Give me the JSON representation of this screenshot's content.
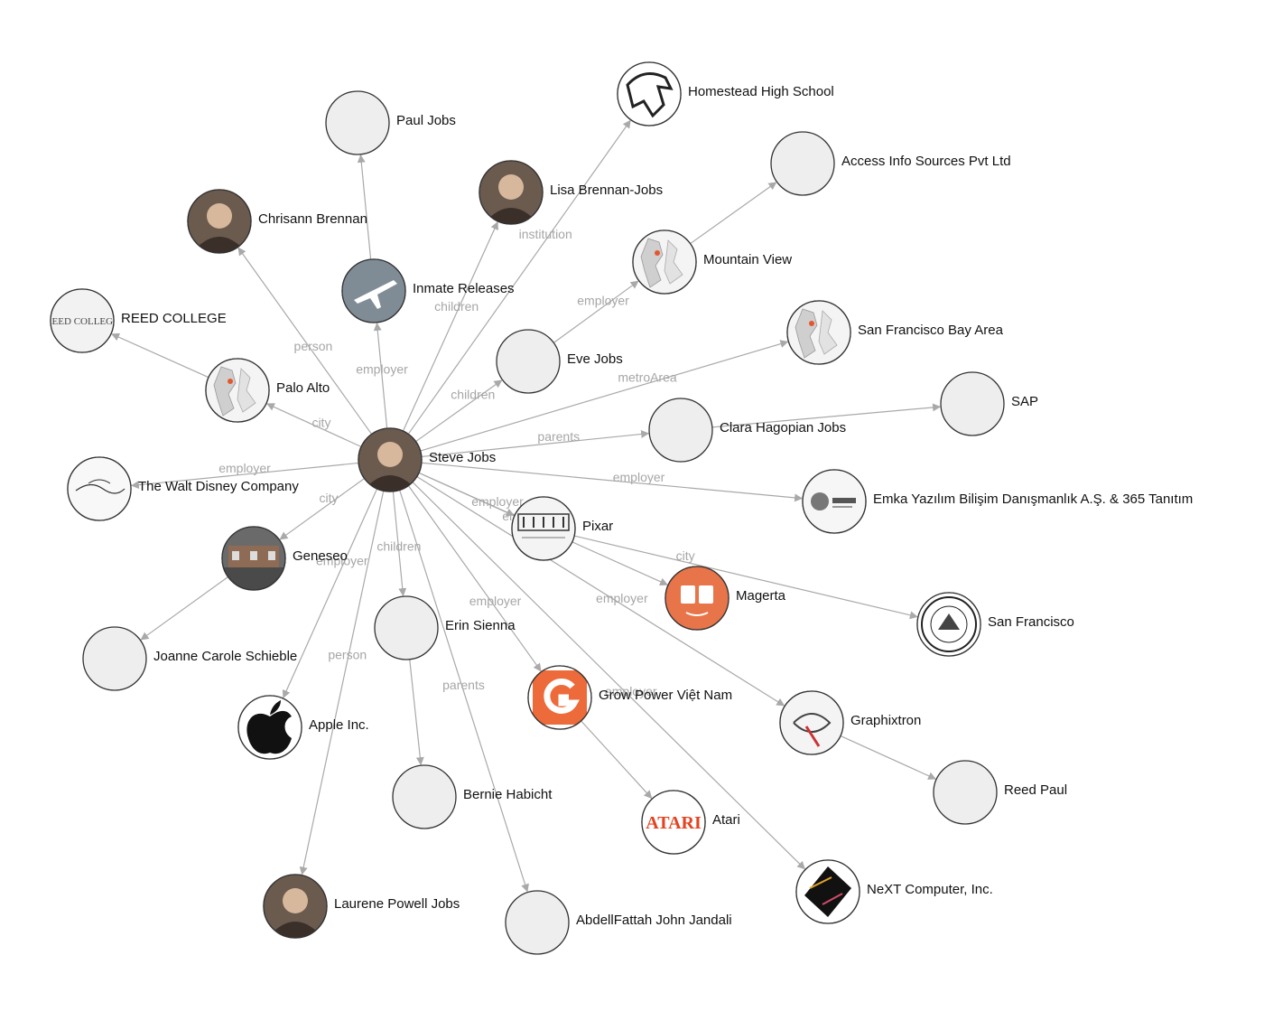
{
  "graph": {
    "nodes": [
      {
        "id": "steve",
        "label": "Steve Jobs",
        "icon": "person-photo-icon"
      },
      {
        "id": "paul",
        "label": "Paul Jobs",
        "icon": ""
      },
      {
        "id": "homestead",
        "label": "Homestead High School",
        "icon": "mustang-logo-icon"
      },
      {
        "id": "access",
        "label": "Access Info Sources Pvt Ltd",
        "icon": ""
      },
      {
        "id": "lisa",
        "label": "Lisa Brennan-Jobs",
        "icon": "person-photo-icon"
      },
      {
        "id": "chrisann",
        "label": "Chrisann Brennan",
        "icon": "person-photo-icon"
      },
      {
        "id": "mountainview",
        "label": "Mountain View",
        "icon": "map-icon"
      },
      {
        "id": "inmate",
        "label": "Inmate Releases",
        "icon": "airplane-icon"
      },
      {
        "id": "reed",
        "label": "REED COLLEGE",
        "icon": "reed-college-logo-icon"
      },
      {
        "id": "sfbay",
        "label": "San Francisco Bay Area",
        "icon": "map-icon"
      },
      {
        "id": "eve",
        "label": "Eve Jobs",
        "icon": ""
      },
      {
        "id": "paloalto",
        "label": "Palo Alto",
        "icon": "map-icon"
      },
      {
        "id": "sap",
        "label": "SAP",
        "icon": ""
      },
      {
        "id": "clara",
        "label": "Clara Hagopian Jobs",
        "icon": ""
      },
      {
        "id": "disney",
        "label": "The Walt Disney Company",
        "icon": "disney-logo-icon"
      },
      {
        "id": "emka",
        "label": "Emka Yazılım Bilişim Danışmanlık A.Ş. & 365 Tanıtım",
        "icon": "tanitim-logo-icon"
      },
      {
        "id": "pixar",
        "label": "Pixar",
        "icon": "pixar-logo-icon"
      },
      {
        "id": "geneseo",
        "label": "Geneseo",
        "icon": "building-photo-icon"
      },
      {
        "id": "magerta",
        "label": "Magerta",
        "icon": "book-logo-icon"
      },
      {
        "id": "sanfrancisco",
        "label": "San Francisco",
        "icon": "city-seal-icon"
      },
      {
        "id": "erin",
        "label": "Erin Sienna",
        "icon": ""
      },
      {
        "id": "joanne",
        "label": "Joanne Carole Schieble",
        "icon": ""
      },
      {
        "id": "growpower",
        "label": "Grow Power Việt Nam",
        "icon": "g-logo-icon"
      },
      {
        "id": "apple",
        "label": "Apple Inc.",
        "icon": "apple-logo-icon"
      },
      {
        "id": "graphixtron",
        "label": "Graphixtron",
        "icon": "logo-design-icon"
      },
      {
        "id": "bernie",
        "label": "Bernie Habicht",
        "icon": ""
      },
      {
        "id": "reedpaul",
        "label": "Reed Paul",
        "icon": ""
      },
      {
        "id": "atari",
        "label": "Atari",
        "icon": "atari-logo-icon"
      },
      {
        "id": "next",
        "label": "NeXT Computer, Inc.",
        "icon": "next-cube-icon"
      },
      {
        "id": "laurene",
        "label": "Laurene Powell Jobs",
        "icon": "person-photo-icon"
      },
      {
        "id": "abdel",
        "label": "AbdellFattah John Jandali",
        "icon": ""
      }
    ],
    "edges": [
      {
        "from": "steve",
        "to": "chrisann",
        "label": "person"
      },
      {
        "from": "steve",
        "to": "inmate",
        "label": "employer"
      },
      {
        "from": "inmate",
        "to": "paul",
        "label": ""
      },
      {
        "from": "steve",
        "to": "lisa",
        "label": "children"
      },
      {
        "from": "steve",
        "to": "homestead",
        "label": "institution"
      },
      {
        "from": "steve",
        "to": "eve",
        "label": "children"
      },
      {
        "from": "eve",
        "to": "mountainview",
        "label": "employer"
      },
      {
        "from": "mountainview",
        "to": "access",
        "label": ""
      },
      {
        "from": "steve",
        "to": "sfbay",
        "label": "metroArea"
      },
      {
        "from": "steve",
        "to": "clara",
        "label": "parents"
      },
      {
        "from": "clara",
        "to": "sap",
        "label": ""
      },
      {
        "from": "steve",
        "to": "emka",
        "label": "employer"
      },
      {
        "from": "steve",
        "to": "paloalto",
        "label": "city"
      },
      {
        "from": "paloalto",
        "to": "reed",
        "label": ""
      },
      {
        "from": "steve",
        "to": "disney",
        "label": "employer"
      },
      {
        "from": "steve",
        "to": "geneseo",
        "label": "city"
      },
      {
        "from": "geneseo",
        "to": "joanne",
        "label": ""
      },
      {
        "from": "steve",
        "to": "pixar",
        "label": "employer"
      },
      {
        "from": "pixar",
        "to": "sanfrancisco",
        "label": "city"
      },
      {
        "from": "steve",
        "to": "magerta",
        "label": "employer"
      },
      {
        "from": "steve",
        "to": "apple",
        "label": "employer"
      },
      {
        "from": "steve",
        "to": "erin",
        "label": "children"
      },
      {
        "from": "erin",
        "to": "bernie",
        "label": ""
      },
      {
        "from": "steve",
        "to": "growpower",
        "label": "employer"
      },
      {
        "from": "growpower",
        "to": "atari",
        "label": ""
      },
      {
        "from": "steve",
        "to": "graphixtron",
        "label": "employer"
      },
      {
        "from": "graphixtron",
        "to": "reedpaul",
        "label": ""
      },
      {
        "from": "steve",
        "to": "next",
        "label": "employer"
      },
      {
        "from": "steve",
        "to": "laurene",
        "label": "person"
      },
      {
        "from": "steve",
        "to": "abdel",
        "label": "parents"
      }
    ]
  }
}
